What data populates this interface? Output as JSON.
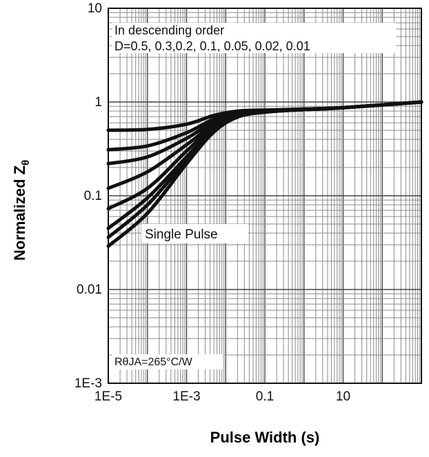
{
  "chart_data": {
    "type": "line",
    "title": "",
    "xlabel": "Pulse Width (s)",
    "ylabel": "Normalized Z",
    "ylabel_subscript": "θ",
    "x_scale": "log",
    "y_scale": "log",
    "xlim": [
      1e-05,
      1000
    ],
    "ylim": [
      0.001,
      10
    ],
    "x_ticks": [
      1e-05,
      0.001,
      0.1,
      10
    ],
    "x_tick_labels": [
      "1E-5",
      "1E-3",
      "0.1",
      "10"
    ],
    "y_ticks": [
      0.001,
      0.01,
      0.1,
      1,
      10
    ],
    "y_tick_labels": [
      "1E-3",
      "0.01",
      "0.1",
      "1",
      "10"
    ],
    "grid": true,
    "annotations": {
      "order_line1": "In descending order",
      "order_line2": "D=0.5, 0.3,0.2, 0.1, 0.05, 0.02, 0.01",
      "single_pulse": "Single Pulse",
      "rthja": "RθJA=265°C/W"
    },
    "series": [
      {
        "x": [
          1e-05,
          0.0001,
          0.001,
          0.005,
          0.02,
          0.1,
          1,
          10,
          1000
        ],
        "y": [
          0.5,
          0.51,
          0.58,
          0.72,
          0.8,
          0.82,
          0.84,
          0.87,
          1.0
        ]
      },
      {
        "x": [
          1e-05,
          0.0001,
          0.001,
          0.005,
          0.02,
          0.1,
          1,
          10,
          1000
        ],
        "y": [
          0.31,
          0.34,
          0.47,
          0.66,
          0.77,
          0.81,
          0.84,
          0.87,
          1.0
        ]
      },
      {
        "x": [
          1e-05,
          0.0001,
          0.001,
          0.005,
          0.02,
          0.1,
          1,
          10,
          1000
        ],
        "y": [
          0.22,
          0.26,
          0.41,
          0.62,
          0.76,
          0.8,
          0.84,
          0.87,
          1.0
        ]
      },
      {
        "x": [
          1e-05,
          0.0001,
          0.001,
          0.005,
          0.02,
          0.1,
          1,
          10,
          1000
        ],
        "y": [
          0.12,
          0.18,
          0.35,
          0.58,
          0.74,
          0.8,
          0.83,
          0.87,
          1.0
        ]
      },
      {
        "x": [
          1e-05,
          0.0001,
          0.001,
          0.005,
          0.02,
          0.1,
          1,
          10,
          1000
        ],
        "y": [
          0.073,
          0.12,
          0.3,
          0.55,
          0.73,
          0.79,
          0.83,
          0.87,
          1.0
        ]
      },
      {
        "x": [
          1e-05,
          0.0001,
          0.001,
          0.005,
          0.02,
          0.1,
          1,
          10,
          1000
        ],
        "y": [
          0.045,
          0.095,
          0.26,
          0.52,
          0.71,
          0.79,
          0.83,
          0.87,
          1.0
        ]
      },
      {
        "x": [
          1e-05,
          0.0001,
          0.001,
          0.005,
          0.02,
          0.1,
          1,
          10,
          1000
        ],
        "y": [
          0.036,
          0.08,
          0.24,
          0.5,
          0.7,
          0.78,
          0.83,
          0.87,
          1.0
        ]
      },
      {
        "x": [
          1e-05,
          0.0001,
          0.001,
          0.005,
          0.02,
          0.1,
          1,
          10,
          1000
        ],
        "y": [
          0.029,
          0.065,
          0.22,
          0.48,
          0.69,
          0.78,
          0.83,
          0.87,
          1.0
        ]
      }
    ]
  }
}
